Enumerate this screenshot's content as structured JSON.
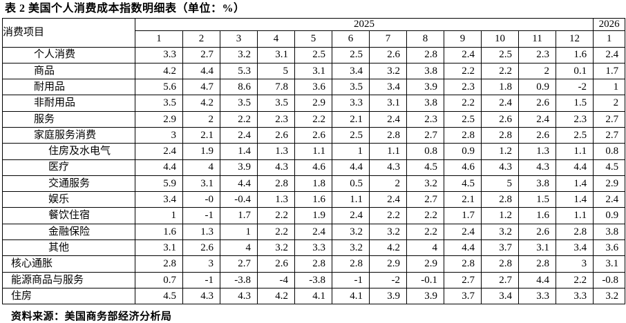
{
  "title": "表 2 美国个人消费成本指数明细表（单位：%）",
  "source": "资料来源：美国商务部经济分析局",
  "table": {
    "header": {
      "item_label": "消费项目",
      "year_2025": "2025",
      "year_2026": "2026",
      "months_2025": [
        "1",
        "2",
        "3",
        "4",
        "5",
        "6",
        "7",
        "8",
        "9",
        "10",
        "11",
        "12"
      ],
      "month_2026": "1"
    },
    "rows": [
      {
        "label": "个人消费",
        "indent": 1,
        "values": [
          "3.3",
          "2.7",
          "3.2",
          "3.1",
          "2.5",
          "2.5",
          "2.6",
          "2.8",
          "2.4",
          "2.5",
          "2.3",
          "1.6",
          "2.4"
        ]
      },
      {
        "label": "商品",
        "indent": 1,
        "values": [
          "4.2",
          "4.4",
          "5.3",
          "5",
          "3.1",
          "3.4",
          "3.2",
          "3.8",
          "2.2",
          "2.2",
          "2",
          "0.1",
          "1.7"
        ]
      },
      {
        "label": "耐用品",
        "indent": 1,
        "values": [
          "5.6",
          "4.7",
          "8.6",
          "7.8",
          "3.6",
          "3.5",
          "3.4",
          "3.9",
          "2.3",
          "1.8",
          "0.9",
          "-2",
          "1"
        ]
      },
      {
        "label": "非耐用品",
        "indent": 1,
        "values": [
          "3.5",
          "4.2",
          "3.5",
          "3.5",
          "2.9",
          "3.3",
          "3.1",
          "3.8",
          "2.2",
          "2.4",
          "2.6",
          "1.5",
          "2"
        ]
      },
      {
        "label": "服务",
        "indent": 1,
        "values": [
          "2.9",
          "2",
          "2.2",
          "2.3",
          "2.2",
          "2.1",
          "2.4",
          "2.3",
          "2.5",
          "2.6",
          "2.4",
          "2.3",
          "2.7"
        ]
      },
      {
        "label": "家庭服务消费",
        "indent": 1,
        "values": [
          "3",
          "2.1",
          "2.4",
          "2.6",
          "2.6",
          "2.5",
          "2.8",
          "2.7",
          "2.8",
          "2.8",
          "2.6",
          "2.5",
          "2.7"
        ]
      },
      {
        "label": "住房及水电气",
        "indent": 2,
        "values": [
          "2.4",
          "1.9",
          "1.4",
          "1.3",
          "1.1",
          "1",
          "1.1",
          "0.8",
          "0.9",
          "1.2",
          "1.3",
          "1.1",
          "0.8"
        ]
      },
      {
        "label": "医疗",
        "indent": 2,
        "values": [
          "4.4",
          "4",
          "3.9",
          "4.3",
          "4.6",
          "4.4",
          "4.3",
          "4.5",
          "4.6",
          "4.3",
          "4.3",
          "4.4",
          "4.5"
        ]
      },
      {
        "label": "交通服务",
        "indent": 2,
        "values": [
          "5.9",
          "3.1",
          "4.4",
          "2.8",
          "1.8",
          "0.5",
          "2",
          "3.2",
          "4.5",
          "5",
          "3.8",
          "1.4",
          "2.9"
        ]
      },
      {
        "label": "娱乐",
        "indent": 2,
        "values": [
          "3.4",
          "-0",
          "-0.4",
          "1.3",
          "1.6",
          "1.1",
          "2.4",
          "2.7",
          "2.1",
          "2.8",
          "1.5",
          "1.4",
          "2.4"
        ]
      },
      {
        "label": "餐饮住宿",
        "indent": 2,
        "values": [
          "1",
          "-1",
          "1.7",
          "2.2",
          "1.9",
          "2.4",
          "2.2",
          "2.2",
          "1.7",
          "1.2",
          "1.6",
          "1.1",
          "0.9"
        ]
      },
      {
        "label": "金融保险",
        "indent": 2,
        "values": [
          "1.6",
          "1.3",
          "1",
          "2.2",
          "2.4",
          "3.2",
          "3.2",
          "2.2",
          "2.4",
          "3.2",
          "2.6",
          "2.8",
          "3.8"
        ]
      },
      {
        "label": "其他",
        "indent": 2,
        "values": [
          "3.1",
          "2.6",
          "4",
          "3.2",
          "3.3",
          "3.2",
          "4.2",
          "4",
          "4.4",
          "3.7",
          "3.1",
          "3.4",
          "3.6"
        ]
      },
      {
        "label": "核心通胀",
        "indent": 0,
        "values": [
          "2.8",
          "3",
          "2.7",
          "2.6",
          "2.8",
          "2.8",
          "2.9",
          "2.9",
          "2.8",
          "2.8",
          "2.8",
          "3",
          "3.1"
        ]
      },
      {
        "label": "能源商品与服务",
        "indent": 0,
        "values": [
          "0.7",
          "-1",
          "-3.8",
          "-4",
          "-3.8",
          "-1",
          "-2",
          "-0.1",
          "2.7",
          "2.7",
          "4.4",
          "2.2",
          "-0.8"
        ]
      },
      {
        "label": "住房",
        "indent": 0,
        "values": [
          "4.5",
          "4.3",
          "4.3",
          "4.2",
          "4.1",
          "4.1",
          "3.9",
          "3.9",
          "3.7",
          "3.4",
          "3.3",
          "3.3",
          "3.2"
        ]
      }
    ]
  }
}
